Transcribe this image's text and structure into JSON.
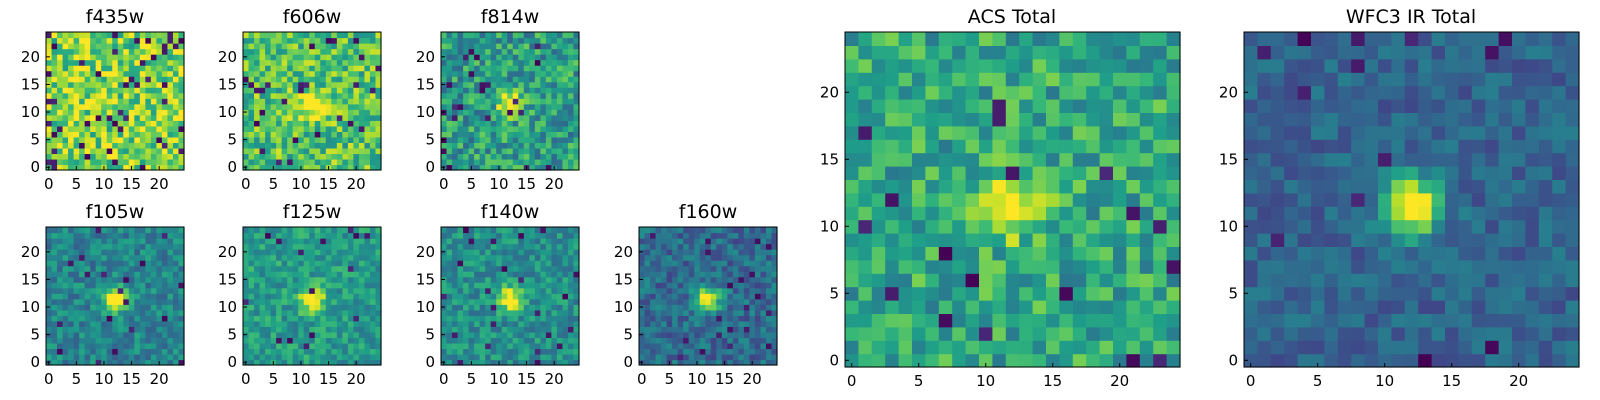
{
  "panels": [
    {
      "title": "f435w",
      "xticks": [
        "0",
        "5",
        "10",
        "15",
        "20"
      ],
      "yticks": [
        "0",
        "5",
        "10",
        "15",
        "20"
      ],
      "peak": 0.0,
      "bright": 0.8,
      "noise": 0.5,
      "dark": 0.08,
      "seed": 11
    },
    {
      "title": "f606w",
      "xticks": [
        "0",
        "5",
        "10",
        "15",
        "20"
      ],
      "yticks": [
        "0",
        "5",
        "10",
        "15",
        "20"
      ],
      "peak": 0.55,
      "bright": 0.72,
      "noise": 0.45,
      "dark": 0.04,
      "seed": 23
    },
    {
      "title": "f814w",
      "xticks": [
        "0",
        "5",
        "10",
        "15",
        "20"
      ],
      "yticks": [
        "0",
        "5",
        "10",
        "15",
        "20"
      ],
      "peak": 0.6,
      "bright": 0.55,
      "noise": 0.45,
      "dark": 0.04,
      "seed": 37
    },
    {
      "title": "f105w",
      "xticks": [
        "0",
        "5",
        "10",
        "15",
        "20"
      ],
      "yticks": [
        "0",
        "5",
        "10",
        "15",
        "20"
      ],
      "peak": 0.7,
      "bright": 0.45,
      "noise": 0.3,
      "dark": 0.03,
      "seed": 41
    },
    {
      "title": "f125w",
      "xticks": [
        "0",
        "5",
        "10",
        "15",
        "20"
      ],
      "yticks": [
        "0",
        "5",
        "10",
        "15",
        "20"
      ],
      "peak": 0.6,
      "bright": 0.55,
      "noise": 0.3,
      "dark": 0.03,
      "seed": 53
    },
    {
      "title": "f140w",
      "xticks": [
        "0",
        "5",
        "10",
        "15",
        "20"
      ],
      "yticks": [
        "0",
        "5",
        "10",
        "15",
        "20"
      ],
      "peak": 0.6,
      "bright": 0.5,
      "noise": 0.3,
      "dark": 0.03,
      "seed": 67
    },
    {
      "title": "f160w",
      "xticks": [
        "0",
        "5",
        "10",
        "15",
        "20"
      ],
      "yticks": [
        "0",
        "5",
        "10",
        "15",
        "20"
      ],
      "peak": 0.75,
      "bright": 0.35,
      "noise": 0.3,
      "dark": 0.03,
      "seed": 71
    },
    {
      "title": "ACS Total",
      "xticks": [
        "0",
        "5",
        "10",
        "15",
        "20"
      ],
      "yticks": [
        "0",
        "5",
        "10",
        "15",
        "20"
      ],
      "peak": 0.55,
      "bright": 0.6,
      "noise": 0.4,
      "dark": 0.03,
      "seed": 83
    },
    {
      "title": "WFC3 IR Total",
      "xticks": [
        "0",
        "5",
        "10",
        "15",
        "20"
      ],
      "yticks": [
        "0",
        "5",
        "10",
        "15",
        "20"
      ],
      "peak": 0.8,
      "bright": 0.32,
      "noise": 0.22,
      "dark": 0.03,
      "seed": 97
    }
  ],
  "chart_data": [
    {
      "type": "heatmap",
      "title": "f435w",
      "grid_size": [
        25,
        25
      ],
      "xlim": [
        -0.5,
        24.5
      ],
      "ylim": [
        -0.5,
        24.5
      ],
      "colormap": "viridis"
    },
    {
      "type": "heatmap",
      "title": "f606w",
      "grid_size": [
        25,
        25
      ],
      "xlim": [
        -0.5,
        24.5
      ],
      "ylim": [
        -0.5,
        24.5
      ],
      "colormap": "viridis"
    },
    {
      "type": "heatmap",
      "title": "f814w",
      "grid_size": [
        25,
        25
      ],
      "xlim": [
        -0.5,
        24.5
      ],
      "ylim": [
        -0.5,
        24.5
      ],
      "colormap": "viridis"
    },
    {
      "type": "heatmap",
      "title": "f105w",
      "grid_size": [
        25,
        25
      ],
      "xlim": [
        -0.5,
        24.5
      ],
      "ylim": [
        -0.5,
        24.5
      ],
      "colormap": "viridis"
    },
    {
      "type": "heatmap",
      "title": "f125w",
      "grid_size": [
        25,
        25
      ],
      "xlim": [
        -0.5,
        24.5
      ],
      "ylim": [
        -0.5,
        24.5
      ],
      "colormap": "viridis"
    },
    {
      "type": "heatmap",
      "title": "f140w",
      "grid_size": [
        25,
        25
      ],
      "xlim": [
        -0.5,
        24.5
      ],
      "ylim": [
        -0.5,
        24.5
      ],
      "colormap": "viridis"
    },
    {
      "type": "heatmap",
      "title": "f160w",
      "grid_size": [
        25,
        25
      ],
      "xlim": [
        -0.5,
        24.5
      ],
      "ylim": [
        -0.5,
        24.5
      ],
      "colormap": "viridis"
    },
    {
      "type": "heatmap",
      "title": "ACS Total",
      "grid_size": [
        25,
        25
      ],
      "xlim": [
        -0.5,
        24.5
      ],
      "ylim": [
        -0.5,
        24.5
      ],
      "colormap": "viridis"
    },
    {
      "type": "heatmap",
      "title": "WFC3 IR Total",
      "grid_size": [
        25,
        25
      ],
      "xlim": [
        -0.5,
        24.5
      ],
      "ylim": [
        -0.5,
        24.5
      ],
      "colormap": "viridis"
    }
  ],
  "colors": {
    "axis": "#000000",
    "background": "#ffffff"
  }
}
